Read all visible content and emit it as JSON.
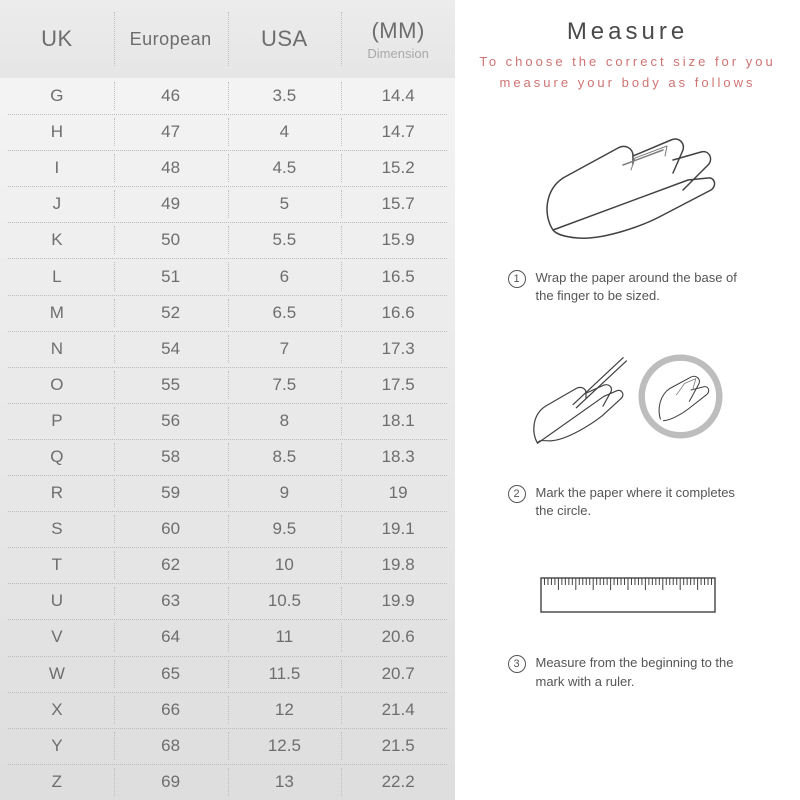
{
  "table": {
    "columns": [
      {
        "main": "UK",
        "sub": ""
      },
      {
        "main": "European",
        "sub": ""
      },
      {
        "main": "USA",
        "sub": ""
      },
      {
        "main": "(MM)",
        "sub": "Dimension"
      }
    ],
    "header_bg_from": "#ececec",
    "header_bg_to": "#e6e6e6",
    "row_bg_light": "#f3f3f3",
    "row_bg_dark": "#dedede",
    "gradient_span_rows": 20,
    "text_color": "#6e6e6e",
    "divider_color": "#bcbcbc",
    "rows": [
      [
        "G",
        "46",
        "3.5",
        "14.4"
      ],
      [
        "H",
        "47",
        "4",
        "14.7"
      ],
      [
        "I",
        "48",
        "4.5",
        "15.2"
      ],
      [
        "J",
        "49",
        "5",
        "15.7"
      ],
      [
        "K",
        "50",
        "5.5",
        "15.9"
      ],
      [
        "L",
        "51",
        "6",
        "16.5"
      ],
      [
        "M",
        "52",
        "6.5",
        "16.6"
      ],
      [
        "N",
        "54",
        "7",
        "17.3"
      ],
      [
        "O",
        "55",
        "7.5",
        "17.5"
      ],
      [
        "P",
        "56",
        "8",
        "18.1"
      ],
      [
        "Q",
        "58",
        "8.5",
        "18.3"
      ],
      [
        "R",
        "59",
        "9",
        "19"
      ],
      [
        "S",
        "60",
        "9.5",
        "19.1"
      ],
      [
        "T",
        "62",
        "10",
        "19.8"
      ],
      [
        "U",
        "63",
        "10.5",
        "19.9"
      ],
      [
        "V",
        "64",
        "11",
        "20.6"
      ],
      [
        "W",
        "65",
        "11.5",
        "20.7"
      ],
      [
        "X",
        "66",
        "12",
        "21.4"
      ],
      [
        "Y",
        "68",
        "12.5",
        "21.5"
      ],
      [
        "Z",
        "69",
        "13",
        "22.2"
      ]
    ]
  },
  "measure": {
    "title": "Measure",
    "subtitle": "To choose the correct size for you measure your body as follows",
    "title_color": "#4a4a4a",
    "subtitle_color": "#d07373",
    "steps": [
      {
        "num": "1",
        "text": "Wrap the paper around the base of the finger to be sized."
      },
      {
        "num": "2",
        "text": "Mark the paper where it completes the circle."
      },
      {
        "num": "3",
        "text": "Measure from the beginning to the mark with a ruler."
      }
    ]
  }
}
